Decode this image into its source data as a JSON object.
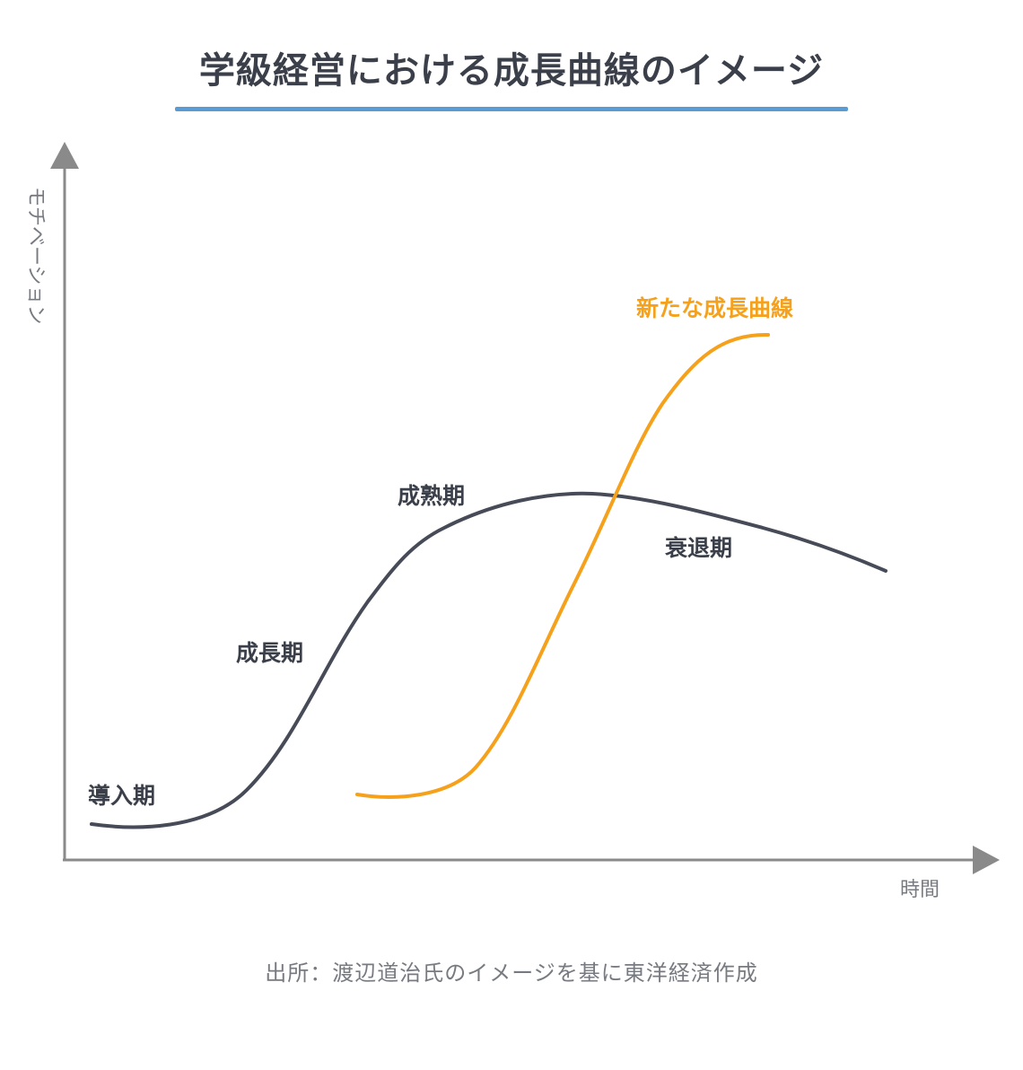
{
  "title": "学級経営における成長曲線のイメージ",
  "axes": {
    "y_label": "モチベーション",
    "x_label": "時間"
  },
  "stages": {
    "introduction": "導入期",
    "growth": "成長期",
    "maturity": "成熟期",
    "decline": "衰退期",
    "new_curve": "新たな成長曲線"
  },
  "source": "出所：渡辺道治氏のイメージを基に東洋経済作成",
  "colors": {
    "main_curve": "#464b57",
    "new_curve": "#f5a11c",
    "axis": "#8a8a8a",
    "underline": "#5b9bd5"
  }
}
